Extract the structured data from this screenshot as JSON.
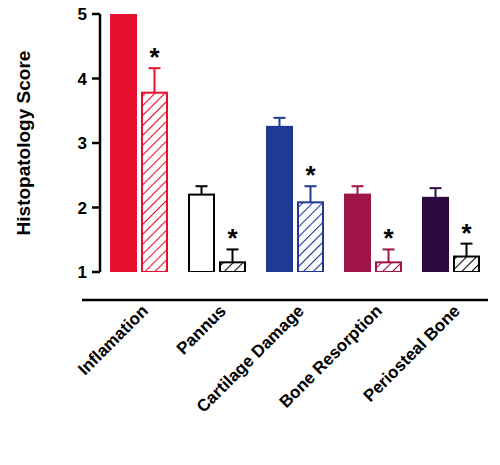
{
  "chart_data": {
    "type": "bar",
    "y_label": "Histopatology Score",
    "categories": [
      "Inflamation",
      "Pannus",
      "Cartilage Damage",
      "Bone Resorption",
      "Periosteal Bone"
    ],
    "series": [
      {
        "line_style": "solid",
        "colors": [
          "#e8112d",
          "#ffffff",
          "#1f3a93",
          "#a0144a",
          "#2b0a3d"
        ],
        "values": [
          5,
          2.2,
          3.25,
          2.2,
          2.15
        ],
        "errors": [
          0,
          0.13,
          0.14,
          0.13,
          0.15
        ]
      },
      {
        "line_style": "hatched",
        "colors": [
          "#e8112d",
          "#000000",
          "#1f3a93",
          "#a0144a",
          "#000000"
        ],
        "values": [
          3.78,
          1.15,
          2.08,
          1.15,
          1.24
        ],
        "errors": [
          0.38,
          0.2,
          0.25,
          0.2,
          0.2
        ]
      }
    ],
    "annotations": [
      "*",
      "*",
      "*",
      "*",
      "*"
    ],
    "ylim": [
      1,
      5
    ],
    "yticks": [
      1,
      2,
      3,
      4,
      5
    ],
    "grid": false
  }
}
